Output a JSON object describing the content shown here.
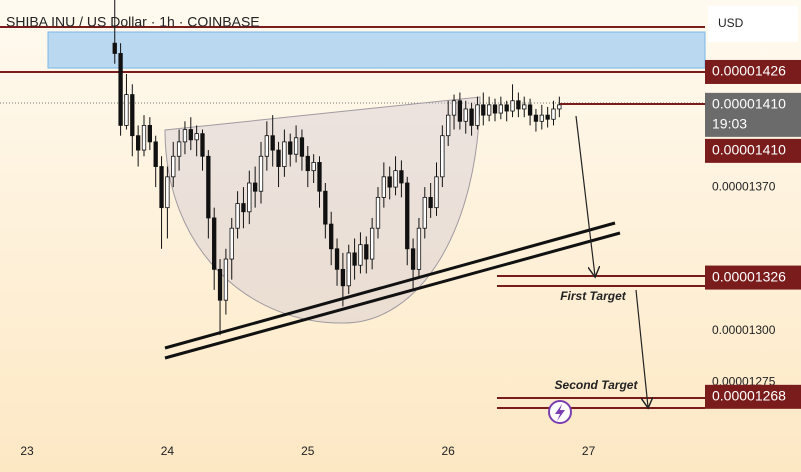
{
  "chart_data": {
    "type": "candlestick",
    "title": "SHIBA INU / US Dollar · 1h · COINBASE",
    "currency": "USD",
    "x": [
      15,
      16,
      17,
      18,
      19,
      20,
      21,
      22,
      23,
      24,
      25,
      26,
      27,
      28,
      29,
      30,
      31,
      32,
      33,
      34,
      35,
      36,
      37,
      38,
      39,
      40,
      41,
      42,
      43,
      44,
      45,
      46,
      47,
      48,
      49,
      50,
      51,
      52,
      53,
      54,
      55,
      56,
      57,
      58,
      59,
      60,
      61,
      62,
      63,
      64,
      65,
      66,
      67,
      68,
      69,
      70,
      71,
      72,
      73,
      74,
      75,
      76,
      77,
      78,
      79,
      80,
      81,
      82,
      83,
      84,
      85,
      86,
      87,
      88,
      89,
      90,
      91
    ],
    "open": [
      1.44e-05,
      1.435e-05,
      1.4e-05,
      1.415e-05,
      1.395e-05,
      1.388e-05,
      1.4e-05,
      1.392e-05,
      1.38e-05,
      1.36e-05,
      1.375e-05,
      1.385e-05,
      1.392e-05,
      1.398e-05,
      1.393e-05,
      1.396e-05,
      1.385e-05,
      1.355e-05,
      1.33e-05,
      1.315e-05,
      1.335e-05,
      1.35e-05,
      1.362e-05,
      1.358e-05,
      1.372e-05,
      1.368e-05,
      1.385e-05,
      1.395e-05,
      1.388e-05,
      1.38e-05,
      1.392e-05,
      1.386e-05,
      1.394e-05,
      1.385e-05,
      1.378e-05,
      1.382e-05,
      1.368e-05,
      1.352e-05,
      1.34e-05,
      1.33e-05,
      1.322e-05,
      1.338e-05,
      1.332e-05,
      1.342e-05,
      1.335e-05,
      1.35e-05,
      1.365e-05,
      1.375e-05,
      1.37e-05,
      1.378e-05,
      1.372e-05,
      1.34e-05,
      1.33e-05,
      1.35e-05,
      1.365e-05,
      1.36e-05,
      1.375e-05,
      1.395e-05,
      1.405e-05,
      1.412e-05,
      1.402e-05,
      1.408e-05,
      1.4e-05,
      1.41e-05,
      1.405e-05,
      1.41e-05,
      1.406e-05,
      1.41e-05,
      1.407e-05,
      1.412e-05,
      1.408e-05,
      1.41e-05,
      1.405e-05,
      1.402e-05,
      1.405e-05,
      1.403e-05,
      1.408e-05
    ],
    "high": [
      1.465e-05,
      1.44e-05,
      1.425e-05,
      1.42e-05,
      1.4e-05,
      1.405e-05,
      1.404e-05,
      1.395e-05,
      1.385e-05,
      1.38e-05,
      1.392e-05,
      1.398e-05,
      1.402e-05,
      1.404e-05,
      1.4e-05,
      1.398e-05,
      1.388e-05,
      1.36e-05,
      1.335e-05,
      1.34e-05,
      1.355e-05,
      1.368e-05,
      1.37e-05,
      1.378e-05,
      1.38e-05,
      1.392e-05,
      1.402e-05,
      1.405e-05,
      1.392e-05,
      1.398e-05,
      1.396e-05,
      1.4e-05,
      1.398e-05,
      1.39e-05,
      1.386e-05,
      1.385e-05,
      1.372e-05,
      1.358e-05,
      1.345e-05,
      1.338e-05,
      1.342e-05,
      1.345e-05,
      1.348e-05,
      1.346e-05,
      1.355e-05,
      1.37e-05,
      1.382e-05,
      1.38e-05,
      1.385e-05,
      1.383e-05,
      1.375e-05,
      1.345e-05,
      1.355e-05,
      1.37e-05,
      1.372e-05,
      1.382e-05,
      1.4e-05,
      1.412e-05,
      1.415e-05,
      1.416e-05,
      1.412e-05,
      1.411e-05,
      1.414e-05,
      1.416e-05,
      1.414e-05,
      1.413e-05,
      1.414e-05,
      1.412e-05,
      1.42e-05,
      1.416e-05,
      1.414e-05,
      1.413e-05,
      1.408e-05,
      1.41e-05,
      1.409e-05,
      1.412e-05,
      1.414e-05
    ],
    "low": [
      1.43e-05,
      1.395e-05,
      1.398e-05,
      1.385e-05,
      1.38e-05,
      1.385e-05,
      1.388e-05,
      1.37e-05,
      1.34e-05,
      1.345e-05,
      1.37e-05,
      1.378e-05,
      1.386e-05,
      1.388e-05,
      1.385e-05,
      1.378e-05,
      1.345e-05,
      1.32e-05,
      1.298e-05,
      1.308e-05,
      1.325e-05,
      1.345e-05,
      1.35e-05,
      1.352e-05,
      1.36e-05,
      1.362e-05,
      1.378e-05,
      1.38e-05,
      1.37e-05,
      1.375e-05,
      1.38e-05,
      1.382e-05,
      1.378e-05,
      1.37e-05,
      1.372e-05,
      1.36e-05,
      1.345e-05,
      1.332e-05,
      1.322e-05,
      1.312e-05,
      1.318e-05,
      1.325e-05,
      1.328e-05,
      1.328e-05,
      1.33e-05,
      1.345e-05,
      1.36e-05,
      1.364e-05,
      1.366e-05,
      1.365e-05,
      1.332e-05,
      1.32e-05,
      1.326e-05,
      1.345e-05,
      1.355e-05,
      1.356e-05,
      1.37e-05,
      1.39e-05,
      1.398e-05,
      1.398e-05,
      1.396e-05,
      1.395e-05,
      1.398e-05,
      1.4e-05,
      1.402e-05,
      1.402e-05,
      1.403e-05,
      1.402e-05,
      1.404e-05,
      1.404e-05,
      1.404e-05,
      1.4e-05,
      1.397e-05,
      1.398e-05,
      1.399e-05,
      1.4e-05,
      1.404e-05
    ],
    "close": [
      1.435e-05,
      1.4e-05,
      1.415e-05,
      1.395e-05,
      1.388e-05,
      1.4e-05,
      1.392e-05,
      1.38e-05,
      1.36e-05,
      1.375e-05,
      1.385e-05,
      1.392e-05,
      1.398e-05,
      1.393e-05,
      1.396e-05,
      1.385e-05,
      1.355e-05,
      1.33e-05,
      1.315e-05,
      1.335e-05,
      1.35e-05,
      1.362e-05,
      1.358e-05,
      1.372e-05,
      1.368e-05,
      1.385e-05,
      1.395e-05,
      1.388e-05,
      1.38e-05,
      1.392e-05,
      1.386e-05,
      1.394e-05,
      1.385e-05,
      1.378e-05,
      1.382e-05,
      1.368e-05,
      1.352e-05,
      1.34e-05,
      1.33e-05,
      1.322e-05,
      1.338e-05,
      1.332e-05,
      1.342e-05,
      1.335e-05,
      1.35e-05,
      1.365e-05,
      1.375e-05,
      1.37e-05,
      1.378e-05,
      1.372e-05,
      1.34e-05,
      1.33e-05,
      1.35e-05,
      1.365e-05,
      1.36e-05,
      1.375e-05,
      1.395e-05,
      1.405e-05,
      1.412e-05,
      1.402e-05,
      1.408e-05,
      1.4e-05,
      1.41e-05,
      1.405e-05,
      1.41e-05,
      1.406e-05,
      1.41e-05,
      1.407e-05,
      1.412e-05,
      1.408e-05,
      1.41e-05,
      1.405e-05,
      1.402e-05,
      1.405e-05,
      1.403e-05,
      1.408e-05,
      1.41e-05
    ],
    "up_color": "#ffffff",
    "down_color": "#111111",
    "xlim": [
      -4.615,
      115.9
    ],
    "xticks": [
      {
        "value": 0,
        "label": "23"
      },
      {
        "value": 24,
        "label": "24"
      },
      {
        "value": 48,
        "label": "25"
      },
      {
        "value": 72,
        "label": "26"
      },
      {
        "value": 96,
        "label": "27"
      }
    ],
    "ylim": [
      1.247e-05,
      1.461e-05
    ],
    "yticks": [
      {
        "value": 1.37e-05,
        "label": "0.00001370"
      },
      {
        "value": 1.3e-05,
        "label": "0.00001300"
      },
      {
        "value": 1.275e-05,
        "label": "0.00001275"
      }
    ],
    "price_labels": [
      {
        "value": 1.426e-05,
        "label": "0.00001426",
        "color": "#7b1c1c"
      },
      {
        "value": 1.41e-05,
        "label": "0.00001410",
        "countdown": "19:03",
        "color": "#6b6b6b"
      },
      {
        "value": 1.41e-05,
        "label": "0.00001410",
        "color": "#7b1c1c"
      },
      {
        "value": 1.326e-05,
        "label": "0.00001326",
        "color": "#7b1c1c"
      },
      {
        "value": 1.268e-05,
        "label": "0.00001268",
        "color": "#7b1c1c"
      }
    ],
    "annotations": [
      "First Target",
      "Second Target"
    ]
  }
}
